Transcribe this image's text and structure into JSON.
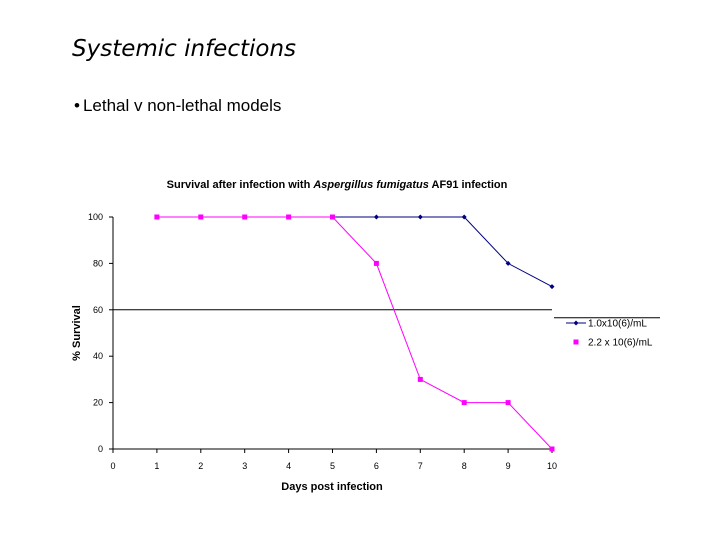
{
  "slide": {
    "title": "Systemic infections",
    "bullet_symbol": "•",
    "bullet": "Lethal v non-lethal models"
  },
  "chart_data": {
    "type": "line",
    "title_before": "Survival after infection with ",
    "title_italic": "Aspergillus fumigatus",
    "title_after": " AF91 infection",
    "xlabel": "Days post infection",
    "ylabel": "% Survival",
    "x_ticks": [
      0,
      1,
      2,
      3,
      4,
      5,
      6,
      7,
      8,
      9,
      10
    ],
    "y_ticks": [
      0,
      20,
      40,
      60,
      80,
      100
    ],
    "xlim": [
      0,
      10
    ],
    "ylim": [
      0,
      100
    ],
    "reference_line_y": 60,
    "grid": false,
    "legend_position": "right",
    "series": [
      {
        "name": "1.0x10(6)/mL",
        "color": "#000080",
        "marker": "diamond",
        "x": [
          1,
          2,
          3,
          4,
          5,
          6,
          7,
          8,
          9,
          10
        ],
        "y": [
          100,
          100,
          100,
          100,
          100,
          100,
          100,
          100,
          80,
          70
        ]
      },
      {
        "name": "2.2 x 10(6)/mL",
        "color": "#ff00ff",
        "marker": "square",
        "x": [
          1,
          2,
          3,
          4,
          5,
          6,
          7,
          8,
          9,
          10
        ],
        "y": [
          100,
          100,
          100,
          100,
          100,
          80,
          30,
          20,
          20,
          0
        ]
      }
    ]
  }
}
